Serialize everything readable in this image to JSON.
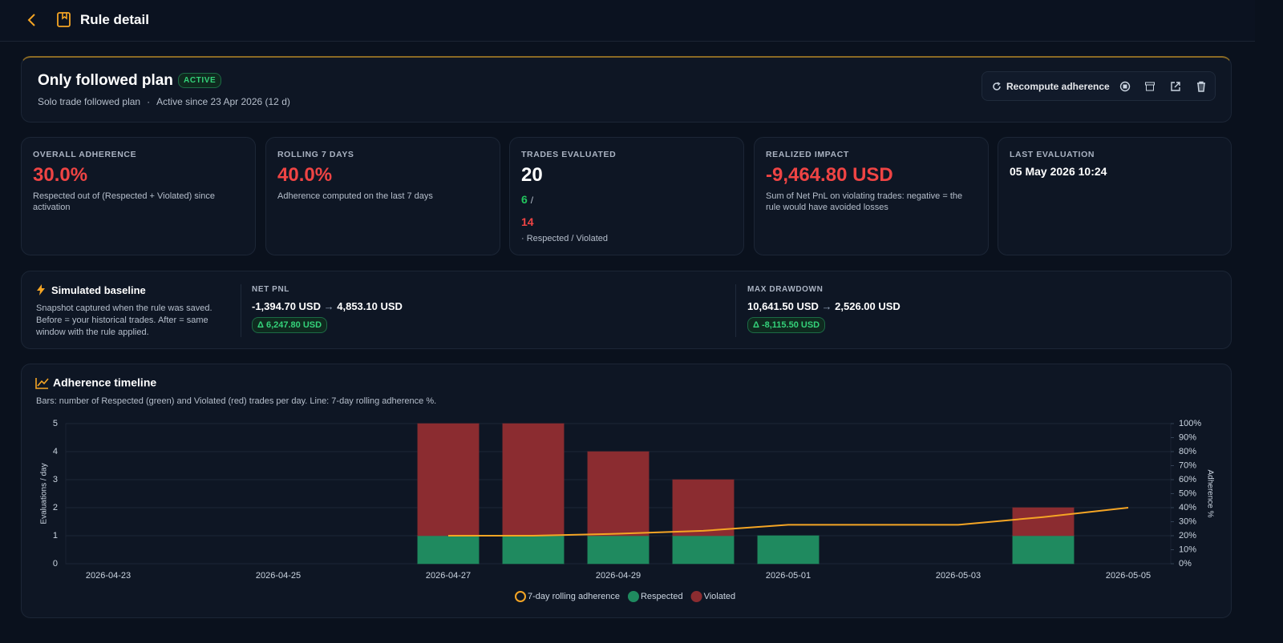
{
  "header": {
    "title": "Rule detail"
  },
  "rule": {
    "name": "Only followed plan",
    "status": "ACTIVE",
    "description": "Solo trade followed plan",
    "separator": "·",
    "active_since": "Active since 23 Apr 2026 (12 d)",
    "recompute": "Recompute adherence"
  },
  "stats": [
    {
      "label": "OVERALL ADHERENCE",
      "value": "30.0%",
      "note": "Respected out of (Respected + Violated) since activation"
    },
    {
      "label": "ROLLING 7 DAYS",
      "value": "40.0%",
      "note": "Adherence computed on the last 7 days"
    },
    {
      "label": "TRADES EVALUATED",
      "value": "20",
      "respected": "6",
      "slash": "/",
      "violated": "14",
      "note": "· Respected / Violated"
    },
    {
      "label": "REALIZED IMPACT",
      "value": "-9,464.80 USD",
      "note": "Sum of Net PnL on violating trades: negative = the rule would have avoided losses"
    },
    {
      "label": "LAST EVALUATION",
      "value": "05 May 2026 10:24"
    }
  ],
  "baseline": {
    "title": "Simulated baseline",
    "description": "Snapshot captured when the rule was saved. Before = your historical trades. After = same window with the rule applied.",
    "metrics": [
      {
        "label": "NET PNL",
        "before": "-1,394.70 USD",
        "arrow": "→",
        "after": "4,853.10 USD",
        "delta": "Δ 6,247.80 USD"
      },
      {
        "label": "MAX DRAWDOWN",
        "before": "10,641.50 USD",
        "arrow": "→",
        "after": "2,526.00 USD",
        "delta": "Δ -8,115.50 USD"
      }
    ]
  },
  "chart_data": {
    "type": "bar",
    "stacked": true,
    "title": "Adherence timeline",
    "subtitle": "Bars: number of Respected (green) and Violated (red) trades per day. Line: 7-day rolling adherence %.",
    "ylabel": "Evaluations / day",
    "y2label": "Adherence %",
    "categories": [
      "2026-04-23",
      null,
      "2026-04-25",
      null,
      "2026-04-27",
      null,
      "2026-04-29",
      null,
      "2026-05-01",
      null,
      "2026-05-03",
      null,
      "2026-05-05"
    ],
    "series": [
      {
        "name": "7-day rolling adherence",
        "type": "line",
        "axis": "y2",
        "color": "#f5a524",
        "values": [
          null,
          null,
          null,
          null,
          20,
          20,
          21.4,
          23.5,
          27.8,
          27.8,
          27.8,
          33.3,
          40
        ]
      },
      {
        "name": "Respected",
        "color": "#1f8a5f",
        "values": [
          0,
          0,
          0,
          0,
          1,
          1,
          1,
          1,
          1,
          0,
          0,
          1,
          0
        ]
      },
      {
        "name": "Violated",
        "color": "#8b2c30",
        "values": [
          0,
          0,
          0,
          0,
          4,
          4,
          3,
          2,
          0,
          0,
          0,
          1,
          0
        ]
      }
    ],
    "ylim": [
      0,
      5
    ],
    "yticks": [
      0,
      1,
      2,
      3,
      4,
      5
    ],
    "y2lim": [
      0,
      100
    ],
    "y2ticks": [
      {
        "value": 0,
        "label": "0%"
      },
      {
        "value": 10,
        "label": "10%"
      },
      {
        "value": 20,
        "label": "20%"
      },
      {
        "value": 30,
        "label": "30%"
      },
      {
        "value": 40,
        "label": "40%"
      },
      {
        "value": 50,
        "label": "50%"
      },
      {
        "value": 60,
        "label": "60%"
      },
      {
        "value": 70,
        "label": "70%"
      },
      {
        "value": 80,
        "label": "80%"
      },
      {
        "value": 90,
        "label": "90%"
      },
      {
        "value": 100,
        "label": "100%"
      }
    ],
    "grid": true,
    "legend": "bottom"
  }
}
